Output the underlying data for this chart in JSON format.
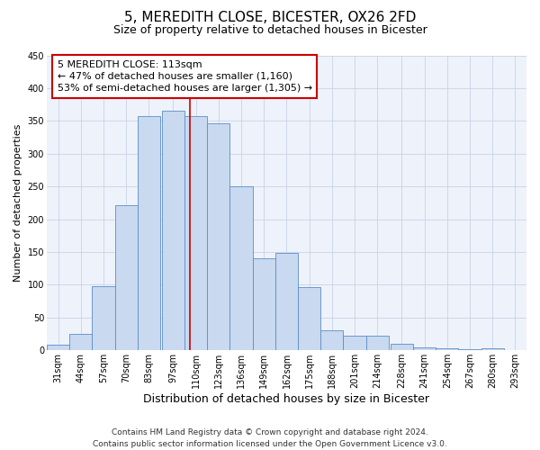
{
  "title": "5, MEREDITH CLOSE, BICESTER, OX26 2FD",
  "subtitle": "Size of property relative to detached houses in Bicester",
  "xlabel": "Distribution of detached houses by size in Bicester",
  "ylabel": "Number of detached properties",
  "bar_labels": [
    "31sqm",
    "44sqm",
    "57sqm",
    "70sqm",
    "83sqm",
    "97sqm",
    "110sqm",
    "123sqm",
    "136sqm",
    "149sqm",
    "162sqm",
    "175sqm",
    "188sqm",
    "201sqm",
    "214sqm",
    "228sqm",
    "241sqm",
    "254sqm",
    "267sqm",
    "280sqm",
    "293sqm"
  ],
  "bar_heights": [
    8,
    25,
    98,
    222,
    358,
    365,
    358,
    347,
    250,
    140,
    148,
    97,
    30,
    22,
    22,
    10,
    5,
    3,
    2,
    3
  ],
  "bin_edges": [
    31,
    44,
    57,
    70,
    83,
    97,
    110,
    123,
    136,
    149,
    162,
    175,
    188,
    201,
    214,
    228,
    241,
    254,
    267,
    280,
    293
  ],
  "bar_color": "#c9d9ef",
  "bar_edge_color": "#5b8dc8",
  "vline_x": 113,
  "vline_color": "#cc0000",
  "annotation_title": "5 MEREDITH CLOSE: 113sqm",
  "annotation_line1": "← 47% of detached houses are smaller (1,160)",
  "annotation_line2": "53% of semi-detached houses are larger (1,305) →",
  "annotation_box_color": "#cc0000",
  "annotation_fill": "#ffffff",
  "ylim": [
    0,
    450
  ],
  "yticks": [
    0,
    50,
    100,
    150,
    200,
    250,
    300,
    350,
    400,
    450
  ],
  "footer1": "Contains HM Land Registry data © Crown copyright and database right 2024.",
  "footer2": "Contains public sector information licensed under the Open Government Licence v3.0.",
  "title_fontsize": 11,
  "subtitle_fontsize": 9,
  "xlabel_fontsize": 9,
  "ylabel_fontsize": 8,
  "tick_fontsize": 7,
  "footer_fontsize": 6.5,
  "annotation_fontsize": 8
}
